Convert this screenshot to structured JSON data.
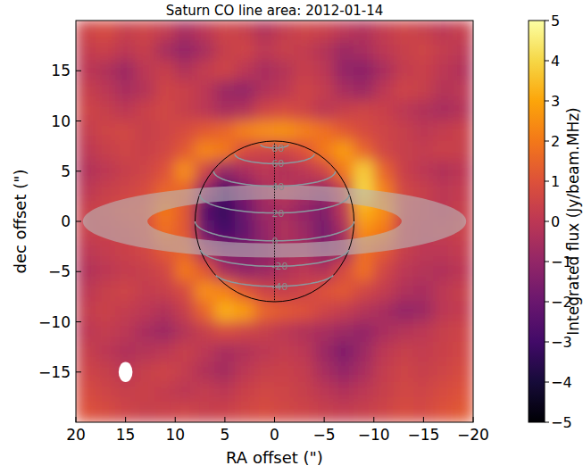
{
  "chart_data": {
    "type": "heatmap",
    "title": "Saturn CO line area: 2012-01-14",
    "x_label": "RA offset (\")",
    "y_label": "dec offset (\")",
    "xlim": [
      20,
      -20
    ],
    "ylim": [
      -20,
      20
    ],
    "xticks": [
      20,
      15,
      10,
      5,
      0,
      {
        "value": -5,
        "label": "−5"
      },
      {
        "value": -10,
        "label": "−10"
      },
      {
        "value": -15,
        "label": "−15"
      },
      {
        "value": -20,
        "label": "−20"
      }
    ],
    "yticks": [
      {
        "value": -15,
        "label": "−15"
      },
      {
        "value": -10,
        "label": "−10"
      },
      {
        "value": -5,
        "label": "−5"
      },
      0,
      5,
      10,
      15
    ],
    "x": [
      19,
      17,
      15,
      13,
      11,
      9,
      7,
      5,
      3,
      1,
      -1,
      -3,
      -5,
      -7,
      -9,
      -11,
      -13,
      -15,
      -17,
      -19
    ],
    "y": [
      19,
      17,
      15,
      13,
      11,
      9,
      7,
      5,
      3,
      1,
      -1,
      -3,
      -5,
      -7,
      -9,
      -11,
      -13,
      -15,
      -17,
      -19
    ],
    "cells": [
      [
        0.5,
        0.8,
        0.3,
        0.5,
        0.2,
        -0.5,
        0,
        0.5,
        0.3,
        -0.3,
        0.2,
        0.5,
        0.4,
        0,
        -0.3,
        0.2,
        0.5,
        0.3,
        0,
        0.3
      ],
      [
        0.2,
        0.4,
        0,
        0.3,
        -0.5,
        -1,
        -0.5,
        0.3,
        0.5,
        0,
        0.3,
        0.2,
        -0.2,
        -0.8,
        -0.5,
        0,
        0.3,
        0.5,
        0.2,
        0
      ],
      [
        0,
        -0.3,
        -0.8,
        0,
        0.3,
        -0.3,
        0.2,
        0.5,
        0,
        -0.5,
        -0.2,
        0.3,
        0,
        -1,
        -1.2,
        -0.5,
        0.2,
        0.4,
        0,
        -0.3
      ],
      [
        0.3,
        0,
        -0.5,
        -0.2,
        0.5,
        0.4,
        0,
        -0.8,
        -1,
        -0.3,
        0,
        0.5,
        0.2,
        -0.5,
        -0.8,
        0,
        0.5,
        0.3,
        -0.2,
        0
      ],
      [
        0.5,
        0.3,
        0,
        0.4,
        0.6,
        0.3,
        0,
        -0.5,
        -0.3,
        0.5,
        0.8,
        0.5,
        0,
        0.3,
        0.5,
        0.4,
        0,
        -0.3,
        -0.5,
        -0.2
      ],
      [
        0.2,
        0.5,
        0.6,
        0.3,
        0.5,
        0.8,
        1.2,
        1.5,
        2.2,
        2.5,
        2.6,
        2.2,
        1.8,
        1.2,
        0.8,
        0.5,
        0.3,
        0,
        0.2,
        0.4
      ],
      [
        0,
        0.3,
        0.5,
        0.4,
        0.6,
        1.2,
        2.3,
        2.0,
        0.8,
        0.5,
        0.5,
        1,
        2,
        2.8,
        1.5,
        0.6,
        0.3,
        0.2,
        0.4,
        0.3
      ],
      [
        -0.3,
        0,
        0.3,
        0.5,
        1,
        2.5,
        0.5,
        -1,
        -0.5,
        0,
        -0.3,
        0,
        0.5,
        2,
        3.8,
        1.5,
        0.4,
        0,
        -0.3,
        0
      ],
      [
        0,
        0.3,
        0.5,
        0.8,
        1.5,
        1.5,
        -1,
        -2.8,
        -1.5,
        -0.5,
        0,
        -0.5,
        -1,
        0.3,
        4,
        2.2,
        0.6,
        0.3,
        0,
        0.2
      ],
      [
        0.3,
        0.5,
        0.8,
        1,
        2,
        1.2,
        -2.5,
        -3.2,
        -2,
        -0.8,
        -0.5,
        -1,
        -1.5,
        0,
        3.2,
        2.5,
        0.5,
        0.2,
        0,
        0.3
      ],
      [
        0.3,
        0.4,
        0.5,
        0.8,
        1.8,
        1.2,
        -2,
        -3,
        -2.2,
        -1,
        -0.3,
        -0.8,
        -1.8,
        -0.5,
        2.5,
        2,
        0.4,
        0.1,
        0.2,
        0.4
      ],
      [
        0,
        0.2,
        0.4,
        0.6,
        1.2,
        1.5,
        -0.5,
        -1.5,
        -1.5,
        -1.2,
        -0.5,
        -0.5,
        -1.2,
        -0.8,
        1.8,
        1.2,
        0.3,
        0,
        0,
        0.2
      ],
      [
        -0.3,
        0,
        0.2,
        0.3,
        0.6,
        2,
        1.2,
        -0.5,
        -1,
        -0.8,
        -0.3,
        0,
        -0.3,
        0.8,
        1.8,
        0.6,
        0,
        -0.2,
        -0.3,
        0
      ],
      [
        0,
        0.3,
        0.5,
        0.2,
        0.3,
        0.8,
        2.5,
        2.2,
        1.2,
        0.5,
        0.3,
        0.5,
        1,
        1.2,
        0.6,
        0.2,
        -0.3,
        -0.5,
        0,
        0.3
      ],
      [
        0.2,
        0.4,
        0.2,
        0,
        -0.3,
        0.3,
        1.5,
        3.2,
        2.8,
        1.5,
        1.2,
        1,
        0.5,
        0.2,
        -0.2,
        -0.5,
        -1,
        -0.8,
        0,
        0.2
      ],
      [
        0,
        0.2,
        0,
        -0.5,
        -0.8,
        -0.2,
        0.3,
        0.8,
        0.5,
        0.3,
        0,
        -0.3,
        -0.5,
        -0.8,
        -1,
        -0.5,
        -0.2,
        0,
        0.3,
        0.5
      ],
      [
        0.3,
        0,
        -0.3,
        -0.2,
        0,
        0.3,
        0,
        -0.5,
        -0.3,
        0,
        0.2,
        0,
        -0.8,
        -1.5,
        -0.8,
        0,
        0.3,
        0.2,
        0.4,
        0.6
      ],
      [
        0.5,
        0.3,
        0,
        0.3,
        0.5,
        0.2,
        -0.3,
        -0.6,
        0,
        0.3,
        0.4,
        0.2,
        -0.5,
        -1,
        -0.5,
        0.2,
        0.5,
        0.3,
        0.5,
        0.8
      ],
      [
        0.8,
        0.5,
        0.3,
        0.4,
        0.2,
        0,
        0.2,
        0,
        0.4,
        0.6,
        0.5,
        0.3,
        0,
        -0.3,
        0,
        0.3,
        0.6,
        0.5,
        0.8,
        1
      ],
      [
        1,
        0.8,
        0.5,
        0.3,
        0.4,
        0.5,
        0.3,
        0.4,
        0.6,
        0.8,
        0.6,
        0.5,
        0.3,
        0.2,
        0.3,
        0.5,
        0.8,
        0.7,
        1,
        1.2
      ]
    ],
    "colorbar": {
      "label": "Integrated flux (Jy/beam.MHz)",
      "range": [
        -5,
        5
      ],
      "ticks": [
        {
          "value": -5,
          "label": "−5"
        },
        {
          "value": -4,
          "label": "−4"
        },
        {
          "value": -3,
          "label": "−3"
        },
        {
          "value": -2,
          "label": "−2"
        },
        {
          "value": -1,
          "label": "−1"
        },
        0,
        1,
        2,
        3,
        4,
        5
      ]
    },
    "latitude_labels": [
      80,
      60,
      40,
      20,
      0,
      -20,
      -40
    ]
  }
}
